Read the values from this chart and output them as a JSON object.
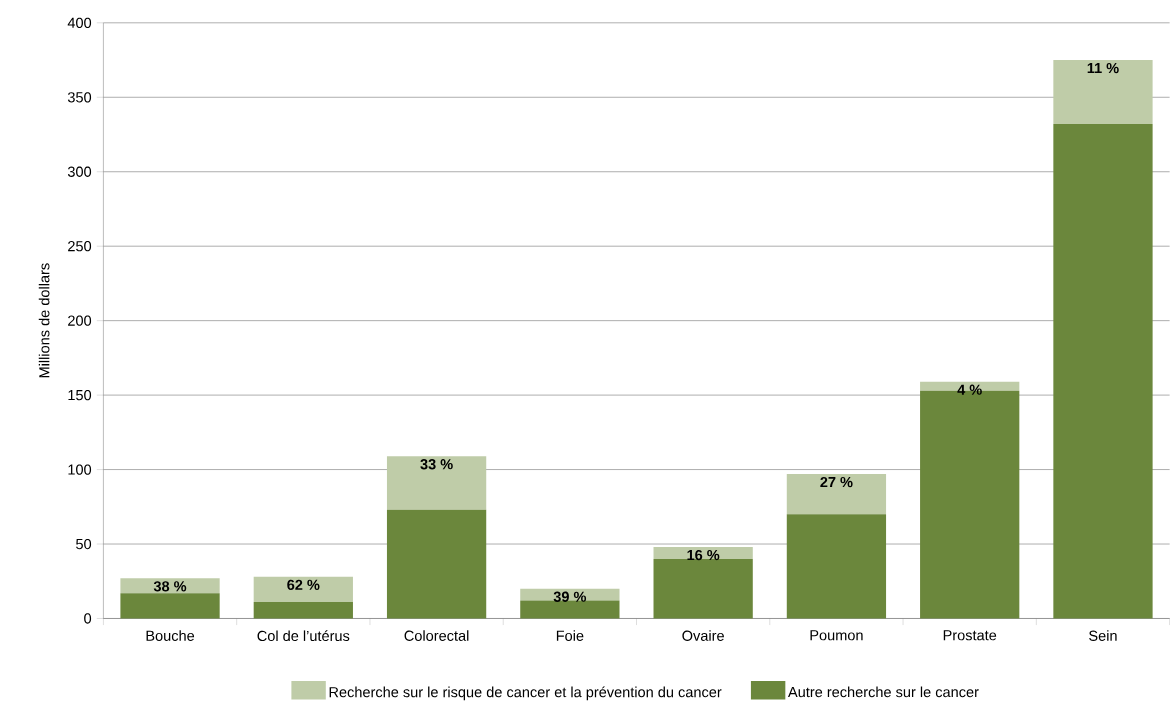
{
  "chart_data": {
    "type": "bar",
    "stacked": true,
    "ylabel": "Millions de dollars",
    "categories": [
      "Bouche",
      "Col de l’utérus",
      "Colorectal",
      "Foie",
      "Ovaire",
      "Poumon",
      "Prostate",
      "Sein"
    ],
    "series": [
      {
        "name": "Autre recherche sur le cancer",
        "color": "#6b873c",
        "values": [
          17,
          11,
          73,
          12,
          40,
          70,
          153,
          332
        ]
      },
      {
        "name": "Recherche sur le risque de cancer et la prévention du cancer",
        "color": "#bfcca8",
        "values": [
          10,
          17,
          36,
          8,
          8,
          27,
          6,
          43
        ]
      }
    ],
    "annotations": [
      {
        "text": "38 %",
        "x": "Bouche",
        "y": 27
      },
      {
        "text": "62 %",
        "x": "Col de l’utérus",
        "y": 28
      },
      {
        "text": "33 %",
        "x": "Colorectal",
        "y": 109
      },
      {
        "text": "39 %",
        "x": "Foie",
        "y": 20
      },
      {
        "text": "16 %",
        "x": "Ovaire",
        "y": 48
      },
      {
        "text": "27 %",
        "x": "Poumon",
        "y": 97
      },
      {
        "text": "4 %",
        "x": "Prostate",
        "y": 159
      },
      {
        "text": "11 %",
        "x": "Sein",
        "y": 375
      }
    ],
    "ylim": [
      0,
      400
    ],
    "yticks": [
      0,
      50,
      100,
      150,
      200,
      250,
      300,
      350,
      400
    ],
    "grid": "y",
    "legend": "bottom"
  }
}
